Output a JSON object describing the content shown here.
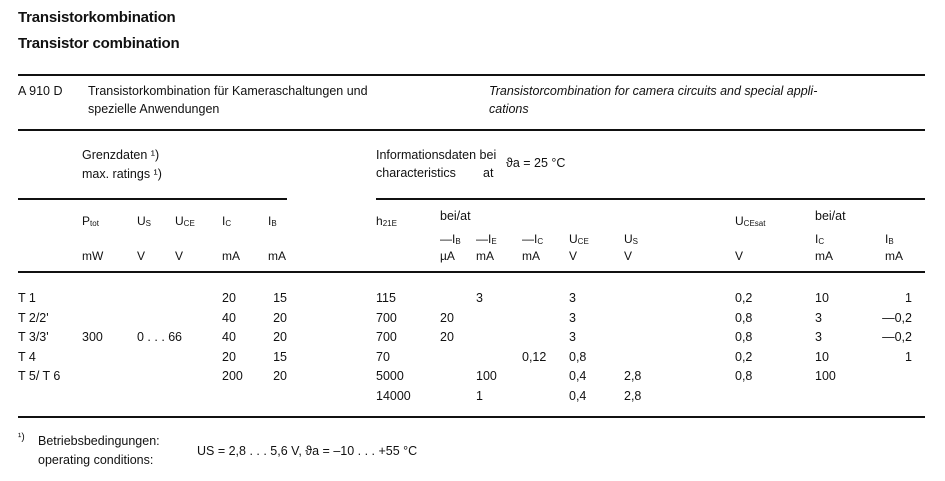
{
  "title_de": "Transistorkombination",
  "title_en": "Transistor combination",
  "type_code": "A 910 D",
  "desc_de": [
    "Transistorkombination  für  Kameraschaltungen  und",
    "spezielle  Anwendungen"
  ],
  "desc_en": [
    "Transistorcombination  for  camera  circuits  and  special  appli-",
    "cations"
  ],
  "limits_heading": [
    "Grenzdaten ¹)",
    "max. ratings ¹)"
  ],
  "char_heading": [
    "Informationsdaten  bei",
    "characteristics",
    "at",
    "ϑa  =  25 °C"
  ],
  "columns": [
    {
      "key": "name",
      "sym": "",
      "sub": "",
      "unit": ""
    },
    {
      "key": "ptot",
      "sym": "P",
      "sub": "tot",
      "unit": "mW"
    },
    {
      "key": "us",
      "sym": "U",
      "sub": "S",
      "unit": "V"
    },
    {
      "key": "uce",
      "sym": "U",
      "sub": "CE",
      "unit": "V"
    },
    {
      "key": "ic",
      "sym": "I",
      "sub": "C",
      "unit": "mA"
    },
    {
      "key": "ib",
      "sym": "I",
      "sub": "B",
      "unit": "mA"
    },
    {
      "key": "h21e",
      "sym": "h",
      "sub": "21E",
      "unit": ""
    },
    {
      "key": "c_ib",
      "sym": "—I",
      "sub": "B",
      "unit": "µA"
    },
    {
      "key": "c_ie",
      "sym": "—I",
      "sub": "E",
      "unit": "mA"
    },
    {
      "key": "c_ic",
      "sym": "—I",
      "sub": "C",
      "unit": "mA"
    },
    {
      "key": "c_uce",
      "sym": "U",
      "sub": "CE",
      "unit": "V"
    },
    {
      "key": "c_us",
      "sym": "U",
      "sub": "S",
      "unit": "V"
    },
    {
      "key": "ucesat",
      "sym": "U",
      "sub": "CEsat",
      "unit": "V"
    },
    {
      "key": "s_ic",
      "sym": "I",
      "sub": "C",
      "unit": "mA"
    },
    {
      "key": "s_ib",
      "sym": "I",
      "sub": "B",
      "unit": "mA"
    }
  ],
  "bei_at": "bei/at",
  "rows": [
    [
      "T 1",
      "",
      "",
      "",
      "20",
      "15",
      "115",
      "",
      "3",
      "",
      "3",
      "",
      "0,2",
      "10",
      "1"
    ],
    [
      "T 2/2'",
      "",
      "",
      "",
      "40",
      "20",
      "700",
      "20",
      "",
      "",
      "3",
      "",
      "0,8",
      "3",
      "—0,2"
    ],
    [
      "T 3/3'",
      "300",
      "0 . . . 6",
      "6",
      "40",
      "20",
      "700",
      "20",
      "",
      "",
      "3",
      "",
      "0,8",
      "3",
      "—0,2"
    ],
    [
      "T 4",
      "",
      "",
      "",
      "20",
      "15",
      "70",
      "",
      "",
      "0,12",
      "0,8",
      "",
      "0,2",
      "10",
      "1"
    ],
    [
      "T 5/ T 6",
      "",
      "",
      "",
      "200",
      "20",
      "5000",
      "",
      "100",
      "",
      "0,4",
      "2,8",
      "0,8",
      "100",
      ""
    ],
    [
      "",
      "",
      "",
      "",
      "",
      "",
      "14000",
      "",
      "1",
      "",
      "0,4",
      "2,8",
      "",
      "",
      ""
    ]
  ],
  "footnote": {
    "mark": "¹)",
    "label_de": "Betriebsbedingungen:",
    "label_en": "operating conditions:",
    "conditions": "US  =  2,8 . . .  5,6 V,  ϑa  =  –10 . . .  +55 °C"
  }
}
